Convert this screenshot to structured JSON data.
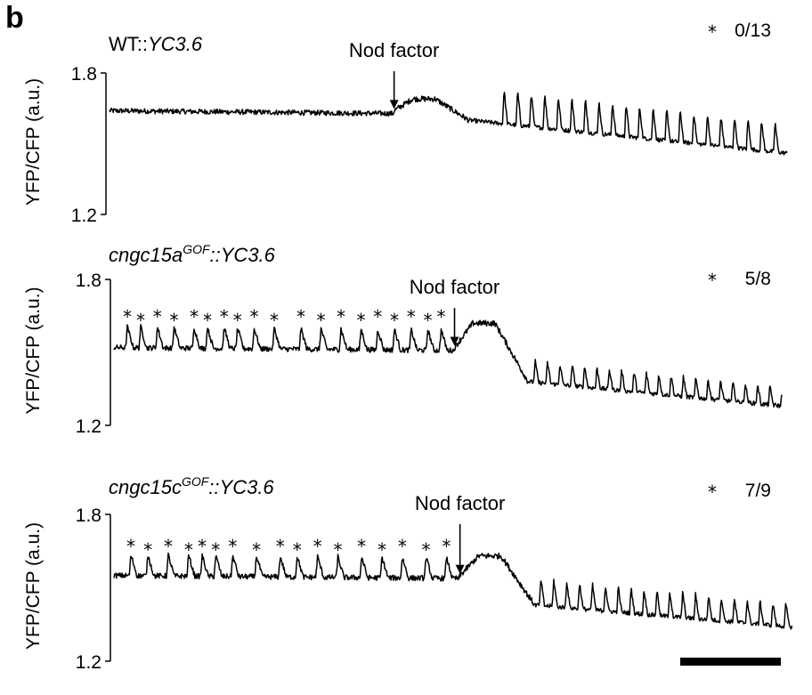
{
  "figure": {
    "panel_letter": "b",
    "scale_bar_visible": true
  },
  "chart_data": [
    {
      "type": "line",
      "title_prefix": "WT::",
      "title_italic": "YC3.6",
      "title_sup": "",
      "ylabel": "YFP/CFP (a.u.)",
      "yticks": [
        "1.8",
        "1.2"
      ],
      "ylim": [
        1.2,
        1.8
      ],
      "annotation": "Nod factor",
      "star_symbol": "*",
      "count_label": "0/13",
      "x_range": [
        0,
        100
      ],
      "nod_factor_x": 42,
      "baseline_pre": 1.64,
      "baseline_post_start": 1.6,
      "baseline_post_end": 1.46,
      "plateau_level": 1.69,
      "pre_spike_x": [],
      "post_spike_first_x": 58,
      "post_spike_period": 2.0,
      "post_spike_height": 0.15,
      "line_color": "#000000"
    },
    {
      "type": "line",
      "title_prefix": "cngc15a",
      "title_italic": "",
      "title_sup": "GOF",
      "title_suffix": "::YC3.6",
      "ylabel": "YFP/CFP (a.u.)",
      "yticks": [
        "1.8",
        "1.2"
      ],
      "ylim": [
        1.2,
        1.8
      ],
      "annotation": "Nod factor",
      "star_symbol": "*",
      "count_label": "5/8",
      "x_range": [
        0,
        100
      ],
      "nod_factor_x": 51,
      "baseline_pre": 1.52,
      "baseline_post_start": 1.38,
      "baseline_post_end": 1.28,
      "plateau_level": 1.62,
      "pre_spike_x": [
        2,
        4,
        6.5,
        9,
        12,
        14,
        16.5,
        18.5,
        21,
        24,
        28,
        31,
        34,
        37,
        39.5,
        42,
        44.5,
        47,
        49
      ],
      "post_spike_first_x": 61,
      "post_spike_period": 1.85,
      "post_spike_height": 0.09,
      "line_color": "#000000"
    },
    {
      "type": "line",
      "title_prefix": "cngc15c",
      "title_italic": "",
      "title_sup": "GOF",
      "title_suffix": "::YC3.6",
      "ylabel": "YFP/CFP (a.u.)",
      "yticks": [
        "1.8",
        "1.2"
      ],
      "ylim": [
        1.2,
        1.8
      ],
      "annotation": "Nod factor",
      "star_symbol": "*",
      "count_label": "7/9",
      "x_range": [
        0,
        100
      ],
      "nod_factor_x": 51,
      "baseline_pre": 1.55,
      "baseline_post_start": 1.43,
      "baseline_post_end": 1.34,
      "plateau_level": 1.63,
      "pre_spike_x": [
        2.5,
        5,
        8,
        11,
        13,
        15,
        17.5,
        21,
        24.5,
        27,
        30,
        33,
        36.5,
        39.5,
        42.5,
        46,
        49
      ],
      "post_spike_first_x": 57,
      "post_spike_period": 1.9,
      "post_spike_height": 0.11,
      "line_color": "#000000"
    }
  ]
}
